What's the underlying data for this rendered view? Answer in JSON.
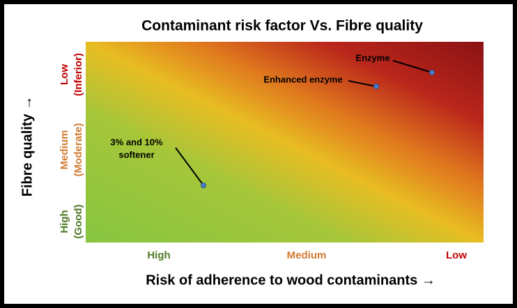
{
  "title": "Contaminant risk factor Vs. Fibre quality",
  "x_axis": {
    "label": "Risk of adherence to wood contaminants →",
    "categories": [
      "High",
      "Medium",
      "Low"
    ]
  },
  "y_axis": {
    "label": "Fibre quality →",
    "categories": [
      [
        "High",
        "(Good)"
      ],
      [
        "Medium",
        "(Moderate)"
      ],
      [
        "Low",
        "(Inferior)"
      ]
    ]
  },
  "annotations": [
    [
      "Enzyme"
    ],
    [
      "Enhanced enzyme"
    ],
    [
      "3% and 10%",
      "softener"
    ]
  ]
}
